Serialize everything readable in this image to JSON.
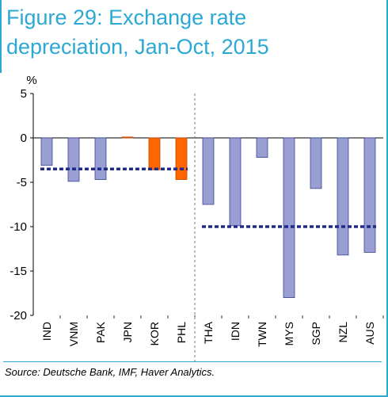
{
  "title": {
    "line1": "Figure 29: Exchange rate",
    "line2": "depreciation, Jan-Oct, 2015"
  },
  "source": "Source: Deutsche Bank, IMF, Haver Analytics.",
  "colors": {
    "accent": "#2ba8d4",
    "bar_default": "#9a9fd3",
    "bar_highlight": "#ff6600",
    "avg_line": "#1f2a8a"
  },
  "chart_data": {
    "type": "bar",
    "ylabel": "%",
    "ylim": [
      -20,
      5
    ],
    "yticks": [
      5,
      0,
      -5,
      -10,
      -15,
      -20
    ],
    "categories": [
      "IND",
      "VNM",
      "PAK",
      "JPN",
      "KOR",
      "PHL",
      "THA",
      "IDN",
      "TWN",
      "MYS",
      "SGP",
      "NZL",
      "AUS"
    ],
    "values": [
      -3.1,
      -4.9,
      -4.7,
      0.1,
      -3.6,
      -4.7,
      -7.5,
      -9.9,
      -2.2,
      -18.0,
      -5.7,
      -13.2,
      -12.9
    ],
    "highlight": [
      false,
      false,
      false,
      true,
      true,
      true,
      false,
      false,
      false,
      false,
      false,
      false,
      false
    ],
    "averages": [
      {
        "from": "IND",
        "to": "PHL",
        "value": -3.5
      },
      {
        "from": "THA",
        "to": "AUS",
        "value": -10.0
      }
    ],
    "divider_after": "PHL",
    "grid": false
  }
}
